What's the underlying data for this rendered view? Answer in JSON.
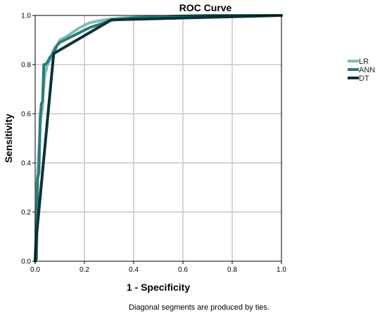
{
  "chart_data": {
    "type": "line",
    "title": "ROC Curve",
    "xlabel": "1 - Specificity",
    "ylabel": "Sensitivity",
    "xlim": [
      0,
      1
    ],
    "ylim": [
      0,
      1
    ],
    "xticks": [
      "0.0",
      "0.2",
      "0.4",
      "0.6",
      "0.8",
      "1.0"
    ],
    "yticks": [
      "0.0",
      "0.2",
      "0.4",
      "0.6",
      "0.8",
      "1.0"
    ],
    "grid": true,
    "legend_position": "right",
    "footnote": "Diagonal segments are produced by ties.",
    "series": [
      {
        "name": "LR",
        "color": "#86b9bb",
        "x": [
          0,
          0.005,
          0.01,
          0.012,
          0.018,
          0.02,
          0.025,
          0.03,
          0.032,
          0.04,
          0.05,
          0.06,
          0.07,
          0.08,
          0.09,
          0.1,
          0.12,
          0.15,
          0.18,
          0.2,
          0.22,
          0.24,
          0.27,
          0.3,
          0.35,
          0.4,
          0.5,
          0.6,
          0.7,
          0.8,
          0.9,
          1.0
        ],
        "y": [
          0,
          0.28,
          0.36,
          0.4,
          0.5,
          0.55,
          0.6,
          0.63,
          0.68,
          0.76,
          0.8,
          0.82,
          0.85,
          0.87,
          0.88,
          0.9,
          0.91,
          0.93,
          0.95,
          0.96,
          0.97,
          0.975,
          0.98,
          0.985,
          0.99,
          0.992,
          0.995,
          0.997,
          0.999,
          1.0,
          1.0,
          1.0
        ]
      },
      {
        "name": "ANN",
        "color": "#2d7b7a",
        "x": [
          0,
          0.005,
          0.01,
          0.015,
          0.02,
          0.025,
          0.03,
          0.035,
          0.04,
          0.05,
          0.06,
          0.07,
          0.08,
          0.09,
          0.1,
          0.12,
          0.14,
          0.16,
          0.18,
          0.2,
          0.22,
          0.25,
          0.28,
          0.3,
          0.35,
          0.4,
          0.5,
          0.6,
          0.7,
          0.8,
          1.0
        ],
        "y": [
          0,
          0.01,
          0.34,
          0.36,
          0.58,
          0.64,
          0.65,
          0.8,
          0.8,
          0.81,
          0.83,
          0.84,
          0.86,
          0.88,
          0.89,
          0.9,
          0.91,
          0.92,
          0.93,
          0.94,
          0.95,
          0.96,
          0.97,
          0.98,
          0.985,
          0.99,
          0.995,
          0.998,
          1.0,
          1.0,
          1.0
        ]
      },
      {
        "name": "DT",
        "color": "#0c3337",
        "x": [
          0,
          0.005,
          0.075,
          0.31,
          1.0
        ],
        "y": [
          0,
          0.1,
          0.845,
          0.982,
          1.0
        ]
      }
    ]
  }
}
